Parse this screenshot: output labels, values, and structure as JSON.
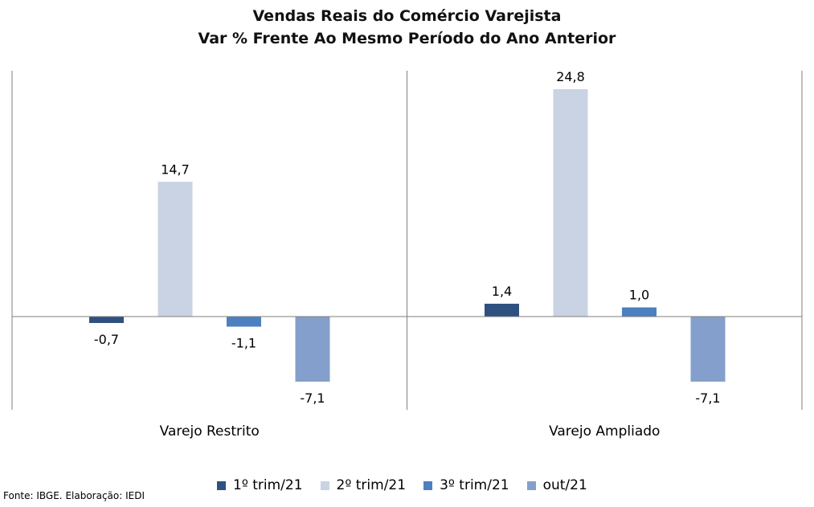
{
  "chart_data": {
    "type": "bar",
    "title": "Vendas Reais do Comércio Varejista",
    "subtitle": "Var % Frente Ao Mesmo Período do Ano Anterior",
    "categories": [
      "Varejo Restrito",
      "Varejo Ampliado"
    ],
    "series": [
      {
        "name": "1º trim/21",
        "values": [
          -0.7,
          1.4
        ],
        "labels": [
          "-0,7",
          "1,4"
        ],
        "color": "#2E5180"
      },
      {
        "name": "2º trim/21",
        "values": [
          14.7,
          24.8
        ],
        "labels": [
          "14,7",
          "24,8"
        ],
        "color": "#CAD3E3"
      },
      {
        "name": "3º trim/21",
        "values": [
          -1.1,
          1.0
        ],
        "labels": [
          "-1,1",
          "1,0"
        ],
        "color": "#4C80C0"
      },
      {
        "name": "out/21",
        "values": [
          -7.1,
          -7.1
        ],
        "labels": [
          "-7,1",
          "-7,1"
        ],
        "color": "#849FCB"
      }
    ],
    "ylim": [
      -10,
      27
    ],
    "grid": false,
    "legend_position": "bottom"
  },
  "source_note": "Fonte: IBGE. Elaboração: IEDI"
}
